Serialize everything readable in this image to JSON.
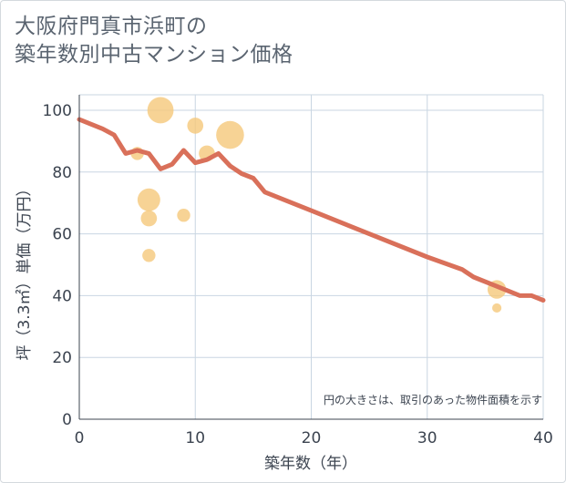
{
  "chart_data": {
    "type": "scatter",
    "title_lines": [
      "大阪府門真市浜町の",
      "築年数別中古マンション価格"
    ],
    "xlabel": "築年数（年）",
    "ylabel": "坪（3.3㎡）単価（万円）",
    "xlim": [
      0,
      40
    ],
    "ylim": [
      0,
      105
    ],
    "x_ticks": [
      0,
      10,
      20,
      30,
      40
    ],
    "y_ticks": [
      0,
      20,
      40,
      60,
      80,
      100
    ],
    "grid": true,
    "annotation": "円の大きさは、取引のあった物件面積を示す",
    "colors": {
      "bubble": "#f5c87a",
      "line": "#d9705a",
      "grid": "#c9d6e2",
      "axis": "#3c4450"
    },
    "bubbles": [
      {
        "x": 5,
        "y": 86,
        "size": 2
      },
      {
        "x": 6,
        "y": 71,
        "size": 6
      },
      {
        "x": 6,
        "y": 65,
        "size": 3
      },
      {
        "x": 6,
        "y": 53,
        "size": 2
      },
      {
        "x": 7,
        "y": 100,
        "size": 8
      },
      {
        "x": 9,
        "y": 66,
        "size": 2
      },
      {
        "x": 10,
        "y": 95,
        "size": 3
      },
      {
        "x": 11,
        "y": 86,
        "size": 3
      },
      {
        "x": 13,
        "y": 92,
        "size": 9
      },
      {
        "x": 36,
        "y": 42,
        "size": 4
      },
      {
        "x": 36,
        "y": 36,
        "size": 1
      }
    ],
    "trend_line": {
      "x": [
        0,
        1,
        2,
        3,
        4,
        5,
        6,
        7,
        8,
        9,
        10,
        11,
        12,
        13,
        14,
        15,
        16,
        20,
        25,
        30,
        33,
        34,
        36,
        37,
        38,
        39,
        40
      ],
      "y": [
        97,
        95.5,
        94,
        92,
        86,
        87,
        86,
        81,
        82.5,
        87,
        83,
        84,
        86,
        82,
        79.5,
        78,
        73.5,
        67.5,
        60,
        52.5,
        48.5,
        46,
        43,
        41.5,
        40,
        40,
        38.5
      ]
    }
  }
}
